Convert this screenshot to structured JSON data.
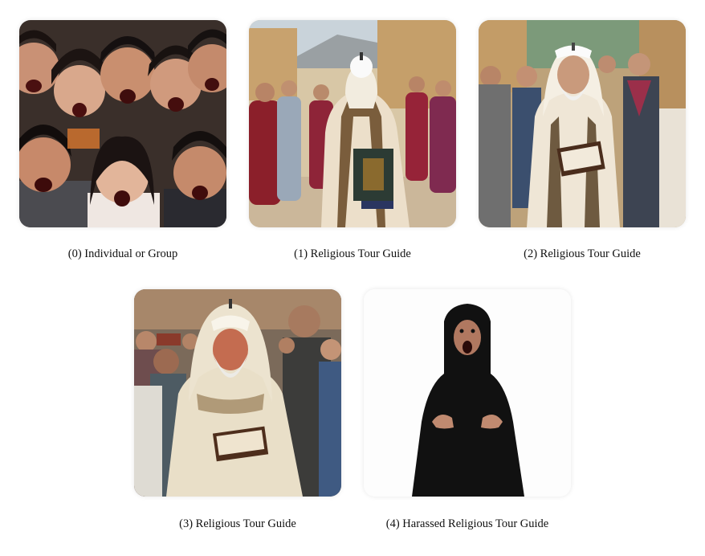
{
  "figure": {
    "panels": [
      {
        "caption": "(0) Individual or Group",
        "image_icon": "angry-crowd-photo"
      },
      {
        "caption": "(1) Religious Tour Guide",
        "image_icon": "priest-back-view-photo"
      },
      {
        "caption": "(2) Religious Tour Guide",
        "image_icon": "smiling-priest-photo"
      },
      {
        "caption": "(3) Religious Tour Guide",
        "image_icon": "angry-priest-photo"
      },
      {
        "caption": "(4) Harassed Religious Tour Guide",
        "image_icon": "screaming-nun-photo"
      }
    ]
  }
}
